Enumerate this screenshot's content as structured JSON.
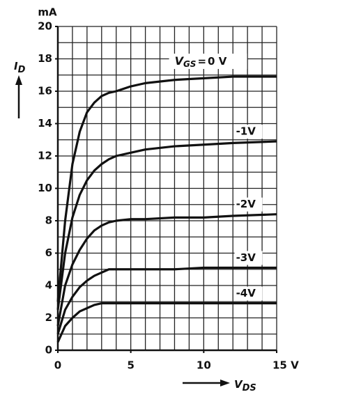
{
  "chart_data": {
    "type": "line",
    "y_unit": "mA",
    "y_label": {
      "main": "I",
      "sub": "D"
    },
    "x_label": {
      "main": "V",
      "sub": "DS"
    },
    "curve_label_prefix": {
      "main": "V",
      "sub": "GS",
      "eq": "="
    },
    "x": [
      0,
      0.5,
      1,
      1.5,
      2,
      2.5,
      3,
      3.5,
      4,
      5,
      6,
      8,
      10,
      12,
      15
    ],
    "series": [
      {
        "name": "0 V",
        "color": "#111111",
        "values": [
          3,
          8,
          11.5,
          13.5,
          14.7,
          15.3,
          15.7,
          15.9,
          16.0,
          16.3,
          16.5,
          16.7,
          16.8,
          16.9,
          16.9
        ]
      },
      {
        "name": "-1V",
        "color": "#111111",
        "values": [
          2.5,
          6,
          8.2,
          9.6,
          10.5,
          11.1,
          11.5,
          11.8,
          12.0,
          12.2,
          12.4,
          12.6,
          12.7,
          12.8,
          12.9
        ]
      },
      {
        "name": "-2V",
        "color": "#111111",
        "values": [
          1.5,
          4,
          5.3,
          6.2,
          6.9,
          7.4,
          7.7,
          7.9,
          8.0,
          8.1,
          8.1,
          8.2,
          8.2,
          8.3,
          8.4
        ]
      },
      {
        "name": "-3V",
        "color": "#111111",
        "values": [
          1.0,
          2.5,
          3.3,
          3.9,
          4.3,
          4.6,
          4.8,
          5.0,
          5.0,
          5.0,
          5.0,
          5.0,
          5.1,
          5.1,
          5.1
        ]
      },
      {
        "name": "-4V",
        "color": "#111111",
        "values": [
          0.5,
          1.5,
          2.0,
          2.4,
          2.6,
          2.8,
          2.9,
          2.9,
          2.9,
          2.9,
          2.9,
          2.9,
          2.9,
          2.9,
          2.9
        ]
      }
    ],
    "xlim": [
      0,
      15
    ],
    "ylim": [
      0,
      20
    ],
    "xticks": [
      0,
      5,
      10,
      {
        "value": 15,
        "label": "15 V"
      }
    ],
    "yticks": [
      0,
      2,
      4,
      6,
      8,
      10,
      12,
      14,
      16,
      18,
      20
    ],
    "grid": true,
    "minor_grid": {
      "x": 1,
      "y": 1
    }
  }
}
